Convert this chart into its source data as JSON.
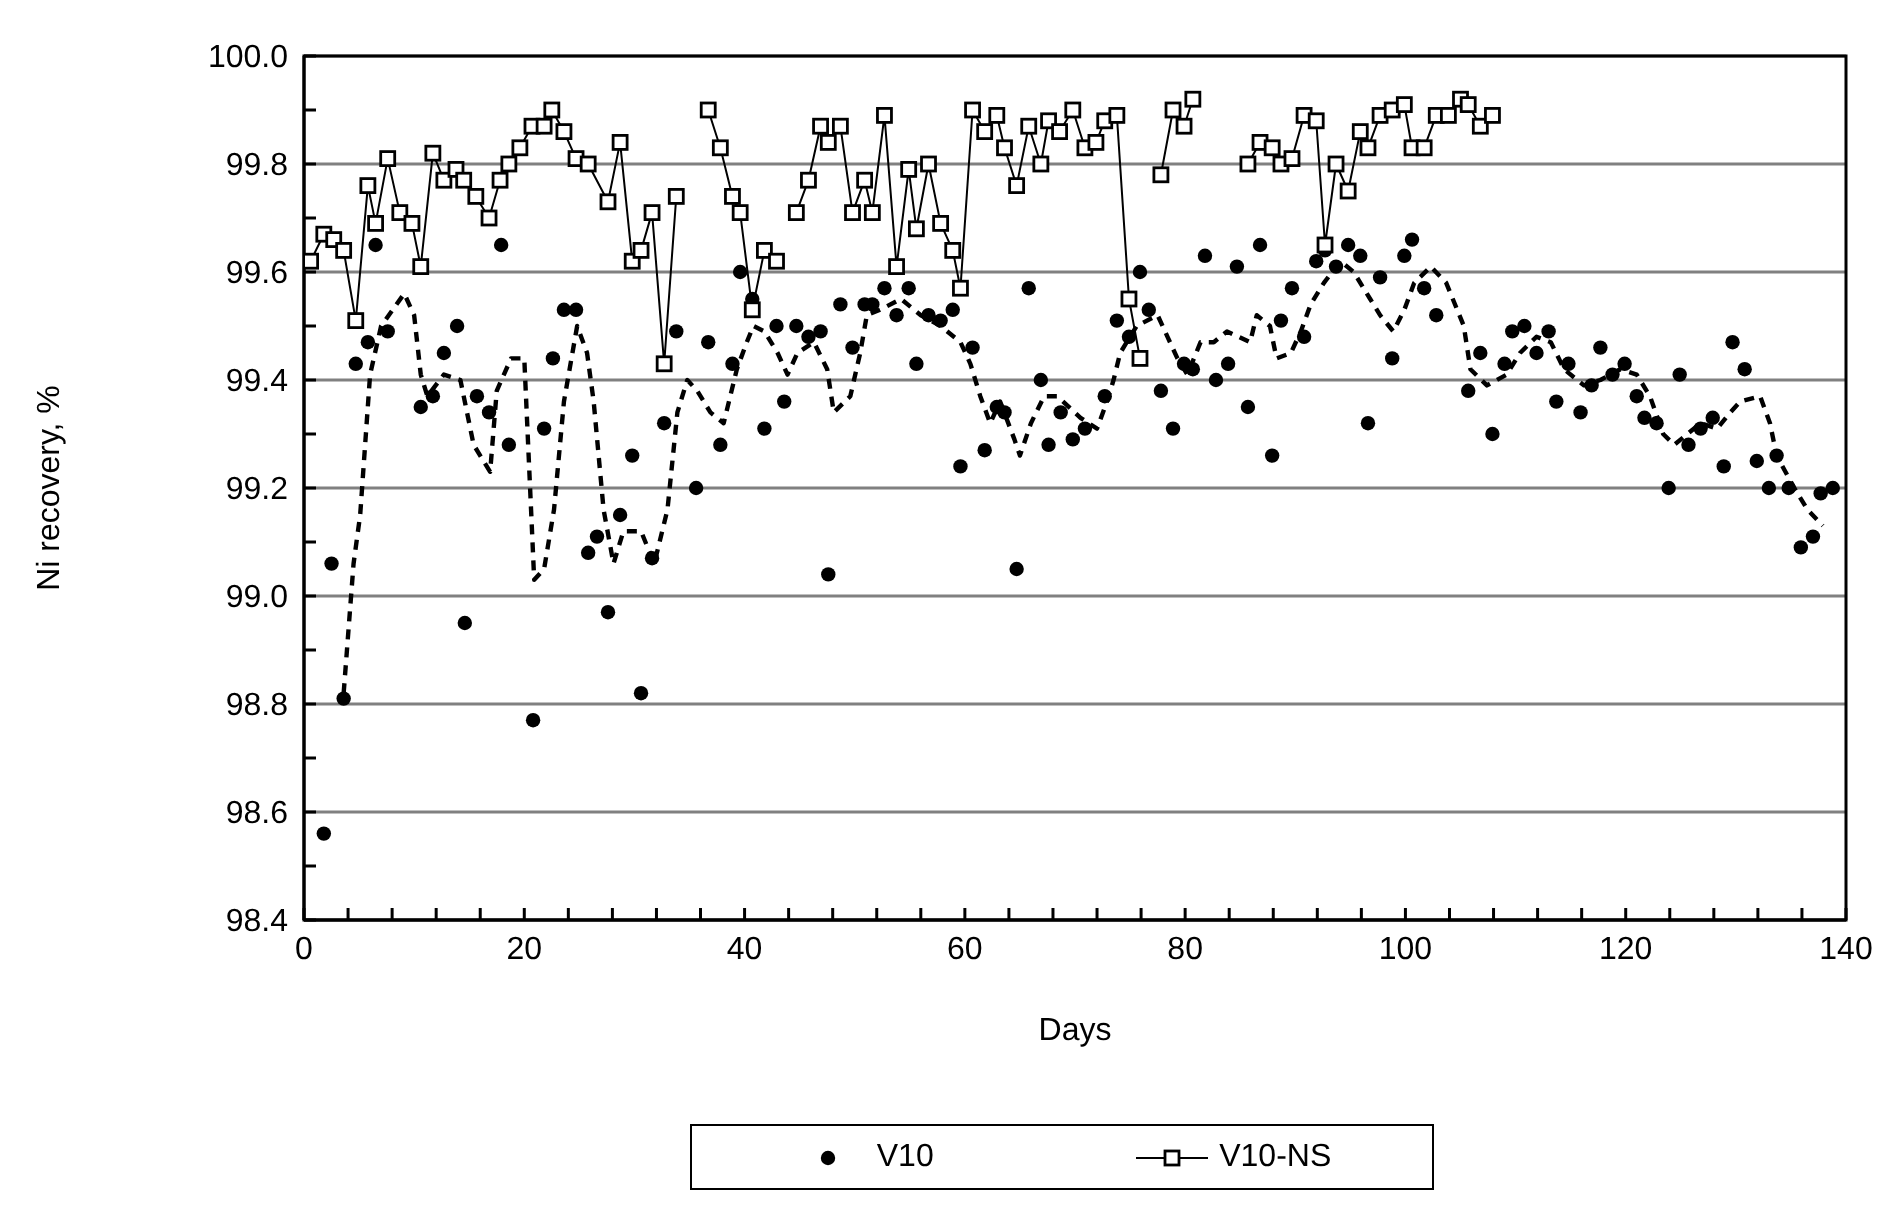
{
  "chart_data": {
    "type": "scatter",
    "xlabel": "Days",
    "ylabel": "Ni recovery, %",
    "xlim": [
      0,
      140
    ],
    "xticks": [
      0,
      {
        "value": 4,
        "label": null
      },
      {
        "value": 8,
        "label": null
      },
      {
        "value": 12,
        "label": null
      },
      {
        "value": 16,
        "label": null
      },
      20,
      {
        "value": 24,
        "label": null
      },
      {
        "value": 28,
        "label": null
      },
      {
        "value": 32,
        "label": null
      },
      {
        "value": 36,
        "label": null
      },
      40,
      {
        "value": 44,
        "label": null
      },
      {
        "value": 48,
        "label": null
      },
      {
        "value": 52,
        "label": null
      },
      {
        "value": 56,
        "label": null
      },
      60,
      {
        "value": 64,
        "label": null
      },
      {
        "value": 68,
        "label": null
      },
      {
        "value": 72,
        "label": null
      },
      {
        "value": 76,
        "label": null
      },
      80,
      {
        "value": 84,
        "label": null
      },
      {
        "value": 88,
        "label": null
      },
      {
        "value": 92,
        "label": null
      },
      {
        "value": 96,
        "label": null
      },
      100,
      {
        "value": 104,
        "label": null
      },
      {
        "value": 108,
        "label": null
      },
      {
        "value": 112,
        "label": null
      },
      {
        "value": 116,
        "label": null
      },
      120,
      {
        "value": 124,
        "label": null
      },
      {
        "value": 128,
        "label": null
      },
      {
        "value": 132,
        "label": null
      },
      {
        "value": 136,
        "label": null
      },
      140
    ],
    "ylim": [
      98.4,
      100
    ],
    "yticks": [
      {
        "value": 98.4,
        "label": "98.4"
      },
      {
        "value": 98.5,
        "label": null
      },
      {
        "value": 98.6,
        "label": "98.6"
      },
      {
        "value": 98.7,
        "label": null
      },
      {
        "value": 98.8,
        "label": "98.8"
      },
      {
        "value": 98.9,
        "label": null
      },
      {
        "value": 99,
        "label": "99.0"
      },
      {
        "value": 99.1,
        "label": null
      },
      {
        "value": 99.2,
        "label": "99.2"
      },
      {
        "value": 99.3,
        "label": null
      },
      {
        "value": 99.4,
        "label": "99.4"
      },
      {
        "value": 99.5,
        "label": null
      },
      {
        "value": 99.6,
        "label": "99.6"
      },
      {
        "value": 99.7,
        "label": null
      },
      {
        "value": 99.8,
        "label": "99.8"
      },
      {
        "value": 99.9,
        "label": null
      },
      {
        "value": 100,
        "label": "100.0"
      }
    ],
    "grid": "y",
    "legend": "bottom",
    "series": [
      {
        "name": "V10",
        "marker": "circle",
        "color": "#000000",
        "x": [
          1.8,
          2.5,
          3.6,
          4.7,
          5.8,
          6.5,
          7.6,
          10.6,
          11.7,
          12.7,
          13.9,
          14.6,
          15.7,
          16.8,
          17.9,
          18.6,
          20.8,
          21.8,
          22.6,
          23.6,
          24.7,
          25.8,
          26.6,
          27.6,
          28.7,
          29.8,
          30.6,
          31.6,
          32.7,
          33.8,
          35.6,
          36.7,
          37.8,
          38.9,
          39.6,
          40.7,
          41.8,
          42.9,
          43.6,
          44.7,
          45.8,
          46.9,
          47.6,
          48.7,
          49.8,
          50.9,
          51.6,
          52.7,
          53.8,
          54.9,
          55.6,
          56.7,
          57.8,
          58.9,
          59.6,
          60.7,
          61.8,
          62.9,
          63.6,
          64.7,
          65.8,
          66.9,
          67.6,
          68.7,
          69.8,
          70.9,
          72.7,
          73.8,
          74.9,
          75.9,
          76.7,
          77.8,
          78.9,
          79.9,
          80.7,
          81.8,
          82.8,
          83.9,
          84.7,
          85.7,
          86.8,
          87.9,
          88.7,
          89.7,
          90.8,
          91.9,
          92.7,
          93.7,
          94.8,
          95.9,
          96.6,
          97.7,
          98.8,
          99.9,
          100.6,
          101.7,
          102.8,
          105.7,
          106.8,
          107.9,
          109.0,
          109.7,
          110.8,
          111.9,
          113.0,
          113.7,
          114.8,
          115.9,
          116.9,
          117.7,
          118.8,
          119.9,
          121.0,
          121.7,
          122.8,
          123.9,
          124.9,
          125.7,
          126.8,
          127.9,
          128.9,
          129.7,
          130.8,
          131.9,
          133.0,
          133.7,
          134.8,
          135.9,
          137.0,
          137.7,
          138.8
        ],
        "values": [
          98.56,
          99.06,
          98.81,
          99.43,
          99.47,
          99.65,
          99.49,
          99.35,
          99.37,
          99.45,
          99.5,
          98.95,
          99.37,
          99.34,
          99.65,
          99.28,
          98.77,
          99.31,
          99.44,
          99.53,
          99.53,
          99.08,
          99.11,
          98.97,
          99.15,
          99.26,
          98.82,
          99.07,
          99.32,
          99.49,
          99.2,
          99.47,
          99.28,
          99.43,
          99.6,
          99.55,
          99.31,
          99.5,
          99.36,
          99.5,
          99.48,
          99.49,
          99.04,
          99.54,
          99.46,
          99.54,
          99.54,
          99.57,
          99.52,
          99.57,
          99.43,
          99.52,
          99.51,
          99.53,
          99.24,
          99.46,
          99.27,
          99.35,
          99.34,
          99.05,
          99.57,
          99.4,
          99.28,
          99.34,
          99.29,
          99.31,
          99.37,
          99.51,
          99.48,
          99.6,
          99.53,
          99.38,
          99.31,
          99.43,
          99.42,
          99.63,
          99.4,
          99.43,
          99.61,
          99.35,
          99.65,
          99.26,
          99.51,
          99.57,
          99.48,
          99.62,
          99.64,
          99.61,
          99.65,
          99.63,
          99.32,
          99.59,
          99.44,
          99.63,
          99.66,
          99.57,
          99.52,
          99.38,
          99.45,
          99.3,
          99.43,
          99.49,
          99.5,
          99.45,
          99.49,
          99.36,
          99.43,
          99.34,
          99.39,
          99.46,
          99.41,
          99.43,
          99.37,
          99.33,
          99.32,
          99.2,
          99.41,
          99.28,
          99.31,
          99.33,
          99.24,
          99.47,
          99.42,
          99.25,
          99.2,
          99.26,
          99.2,
          99.09,
          99.11,
          99.19,
          99.2
        ]
      },
      {
        "name": "V10-NS",
        "type": "line",
        "marker": "square",
        "color": "#000000",
        "x": [
          0.6,
          1.8,
          2.7,
          3.6,
          4.7,
          5.8,
          6.5,
          7.6,
          8.7,
          9.8,
          10.6,
          11.7,
          12.7,
          13.8,
          14.5,
          15.6,
          16.8,
          17.8,
          18.6,
          19.6,
          20.7,
          21.8,
          22.5,
          23.6,
          24.7,
          25.8,
          27.6,
          28.7,
          29.8,
          30.6,
          31.6,
          32.7,
          33.8,
          35.2,
          36.7,
          37.8,
          38.9,
          39.6,
          40.7,
          41.8,
          42.9,
          43.8,
          44.7,
          45.8,
          46.9,
          47.6,
          48.7,
          49.8,
          50.9,
          51.6,
          52.7,
          53.8,
          54.9,
          55.6,
          56.7,
          57.8,
          58.9,
          59.6,
          60.7,
          61.8,
          62.9,
          63.6,
          64.7,
          65.8,
          66.9,
          67.6,
          68.6,
          69.8,
          70.9,
          71.9,
          72.7,
          73.8,
          74.9,
          75.9,
          76.8,
          77.8,
          78.9,
          79.9,
          80.7,
          83.2,
          85.7,
          86.8,
          87.9,
          88.7,
          89.7,
          90.8,
          91.9,
          92.7,
          93.7,
          94.8,
          95.9,
          96.6,
          97.7,
          98.8,
          99.9,
          100.6,
          101.7,
          102.8,
          103.9,
          105.0,
          105.7,
          106.8,
          107.9
        ],
        "values": [
          99.62,
          99.67,
          99.66,
          99.64,
          99.51,
          99.76,
          99.69,
          99.81,
          99.71,
          99.69,
          99.61,
          99.82,
          99.77,
          99.79,
          99.77,
          99.74,
          99.7,
          99.77,
          99.8,
          99.83,
          99.87,
          99.87,
          99.9,
          99.86,
          99.81,
          99.8,
          99.73,
          99.84,
          99.62,
          99.64,
          99.71,
          99.43,
          99.74,
          null,
          99.9,
          99.83,
          99.74,
          99.71,
          99.53,
          99.64,
          99.62,
          null,
          99.71,
          99.77,
          99.87,
          99.84,
          99.87,
          99.71,
          99.77,
          99.71,
          99.89,
          99.61,
          99.79,
          99.68,
          99.8,
          99.69,
          99.64,
          99.57,
          99.9,
          99.86,
          99.89,
          99.83,
          99.76,
          99.87,
          99.8,
          99.88,
          99.86,
          99.9,
          99.83,
          99.84,
          99.88,
          99.89,
          99.55,
          99.44,
          null,
          99.78,
          99.9,
          99.87,
          99.92,
          null,
          99.8,
          99.84,
          99.83,
          99.8,
          99.81,
          99.89,
          99.88,
          99.65,
          99.8,
          99.75,
          99.86,
          99.83,
          99.89,
          99.9,
          99.91,
          99.83,
          99.83,
          99.89,
          99.89,
          99.92,
          99.91,
          99.87,
          99.89
        ]
      },
      {
        "type": "line",
        "marker": "none",
        "line_style": "dashed",
        "color": "#000000",
        "x": [
          3.6,
          4.5,
          5.1,
          6.0,
          7.0,
          9.1,
          10.0,
          10.6,
          11.2,
          12.7,
          14.2,
          15.4,
          16.9,
          17.5,
          18.8,
          20.0,
          20.9,
          21.8,
          22.7,
          23.6,
          24.8,
          25.7,
          26.3,
          27.2,
          28.1,
          29.0,
          30.6,
          31.8,
          33.0,
          33.9,
          34.8,
          35.7,
          36.9,
          38.1,
          38.7,
          39.3,
          40.2,
          40.8,
          41.8,
          43.0,
          43.9,
          44.8,
          46.3,
          47.5,
          48.1,
          49.6,
          50.5,
          51.1,
          52.3,
          54.2,
          56.0,
          57.8,
          59.6,
          60.5,
          61.4,
          62.3,
          63.2,
          64.5,
          65.0,
          66.0,
          67.2,
          68.4,
          70.5,
          72.0,
          72.9,
          73.5,
          74.1,
          75.6,
          77.5,
          78.4,
          79.3,
          80.2,
          81.4,
          82.6,
          83.8,
          85.9,
          86.5,
          87.7,
          88.3,
          89.6,
          90.5,
          91.4,
          92.6,
          94.1,
          95.3,
          96.8,
          97.7,
          98.9,
          99.9,
          100.8,
          102.3,
          103.7,
          104.7,
          105.3,
          105.9,
          107.4,
          109.2,
          110.4,
          111.9,
          113.2,
          114.4,
          116.2,
          117.7,
          119.5,
          121.0,
          122.2,
          123.4,
          124.4,
          125.6,
          126.8,
          128.3,
          129.5,
          130.4,
          132.2,
          133.1,
          133.7,
          135.3,
          136.5,
          137.9
        ],
        "values": [
          98.82,
          99.06,
          99.15,
          99.41,
          99.5,
          99.56,
          99.52,
          99.41,
          99.37,
          99.41,
          99.4,
          99.28,
          99.23,
          99.38,
          99.44,
          99.44,
          99.03,
          99.05,
          99.16,
          99.36,
          99.5,
          99.45,
          99.36,
          99.16,
          99.06,
          99.12,
          99.12,
          99.06,
          99.16,
          99.34,
          99.4,
          99.38,
          99.34,
          99.32,
          99.37,
          99.42,
          99.47,
          99.5,
          99.49,
          99.45,
          99.41,
          99.45,
          99.47,
          99.42,
          99.34,
          99.37,
          99.45,
          99.52,
          99.53,
          99.55,
          99.52,
          99.5,
          99.47,
          99.43,
          99.37,
          99.32,
          99.36,
          99.29,
          99.26,
          99.32,
          99.37,
          99.37,
          99.33,
          99.31,
          99.36,
          99.4,
          99.45,
          99.5,
          99.52,
          99.48,
          99.44,
          99.41,
          99.47,
          99.47,
          99.49,
          99.47,
          99.52,
          99.5,
          99.44,
          99.45,
          99.49,
          99.54,
          99.58,
          99.62,
          99.6,
          99.55,
          99.52,
          99.49,
          99.53,
          99.58,
          99.61,
          99.58,
          99.53,
          99.5,
          99.42,
          99.39,
          99.41,
          99.45,
          99.48,
          99.47,
          99.42,
          99.39,
          99.4,
          99.42,
          99.41,
          99.37,
          99.3,
          99.28,
          99.3,
          99.32,
          99.31,
          99.34,
          99.36,
          99.37,
          99.32,
          99.26,
          99.2,
          99.16,
          99.13
        ]
      }
    ]
  }
}
